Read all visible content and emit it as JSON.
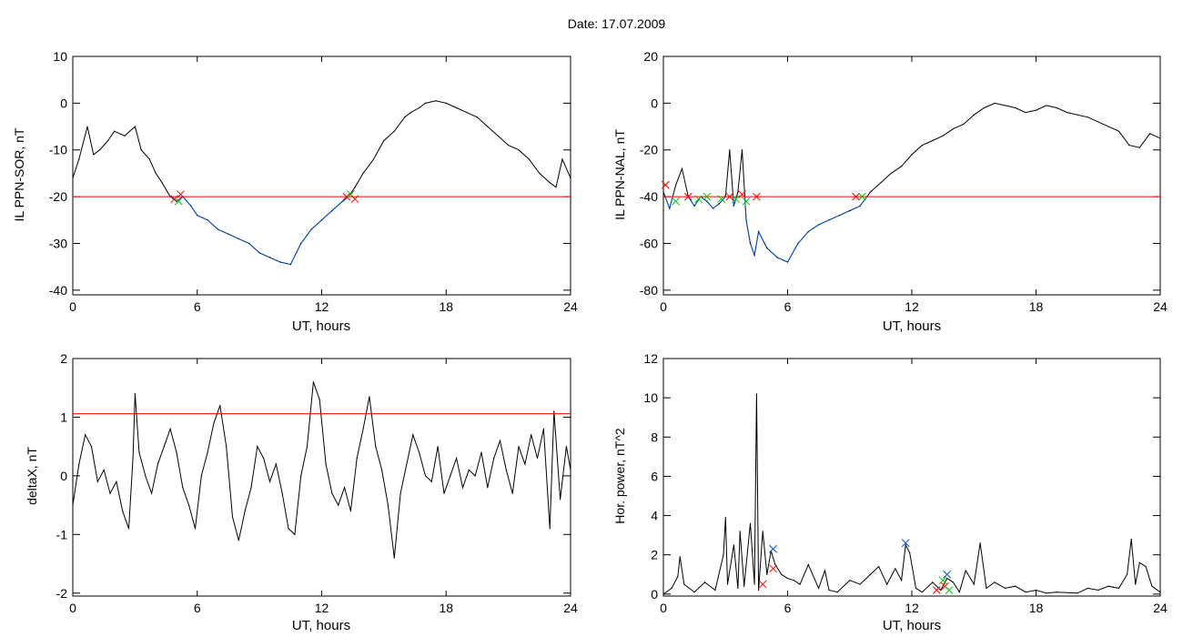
{
  "header": {
    "title": "Date:  17.07.2009"
  },
  "colors": {
    "trace": "#000000",
    "threshold": "#ff0000",
    "below": "#0050c8",
    "marker_red": "#ff0000",
    "marker_green": "#00cc00",
    "marker_blue": "#0050c8"
  },
  "chart_data": [
    {
      "type": "line",
      "title": "",
      "xlabel": "UT, hours",
      "ylabel": "IL PPN-SOR, nT",
      "xlim": [
        0,
        24
      ],
      "ylim": [
        -41,
        10
      ],
      "xticks": [
        "0",
        "6",
        "12",
        "18",
        "24"
      ],
      "yticks": [
        "10",
        "0",
        "-10",
        "-20",
        "-30",
        "-40"
      ],
      "ytick_values": [
        10,
        0,
        -10,
        -20,
        -30,
        -40
      ],
      "threshold": -20,
      "series": [
        {
          "x": [
            0,
            0.3,
            0.7,
            1.0,
            1.3,
            1.7,
            2.0,
            2.5,
            3.0,
            3.3,
            3.7,
            4.0,
            4.3,
            4.7,
            5.0,
            5.3,
            5.7,
            6.0,
            6.5,
            7.0,
            7.5,
            8.0,
            8.5,
            9.0,
            9.5,
            10.0,
            10.5,
            11.0,
            11.5,
            12.0,
            12.5,
            13.0,
            13.3,
            13.6,
            14.0,
            14.5,
            15.0,
            15.5,
            16.0,
            16.3,
            16.7,
            17.0,
            17.5,
            18.0,
            18.5,
            19.0,
            19.5,
            20.0,
            20.5,
            21.0,
            21.5,
            22.0,
            22.5,
            23.0,
            23.3,
            23.6,
            24.0
          ],
          "y": [
            -16,
            -12,
            -5,
            -11,
            -10,
            -8,
            -6,
            -7,
            -5,
            -10,
            -12,
            -15,
            -17,
            -20,
            -21,
            -20,
            -22,
            -24,
            -25,
            -27,
            -28,
            -29,
            -30,
            -32,
            -33,
            -34,
            -34.5,
            -30,
            -27,
            -25,
            -23,
            -21,
            -20,
            -18,
            -15,
            -12,
            -8,
            -6,
            -3,
            -2,
            -1,
            0,
            0.5,
            0,
            -1,
            -2,
            -3,
            -5,
            -7,
            -9,
            -10,
            -12,
            -15,
            -17,
            -18,
            -12,
            -16
          ]
        }
      ],
      "markers": [
        {
          "x": 4.9,
          "y": -20.5,
          "color": "red"
        },
        {
          "x": 5.2,
          "y": -19.5,
          "color": "red"
        },
        {
          "x": 5.1,
          "y": -21,
          "color": "green"
        },
        {
          "x": 13.2,
          "y": -20,
          "color": "red"
        },
        {
          "x": 13.4,
          "y": -19.5,
          "color": "green"
        },
        {
          "x": 13.6,
          "y": -20.5,
          "color": "red"
        }
      ]
    },
    {
      "type": "line",
      "title": "",
      "xlabel": "UT, hours",
      "ylabel": "IL PPN-NAL, nT",
      "xlim": [
        0,
        24
      ],
      "ylim": [
        -82,
        20
      ],
      "xticks": [
        "0",
        "6",
        "12",
        "18",
        "24"
      ],
      "yticks": [
        "20",
        "0",
        "-20",
        "-40",
        "-60",
        "-80"
      ],
      "ytick_values": [
        20,
        0,
        -20,
        -40,
        -60,
        -80
      ],
      "threshold": -40,
      "series": [
        {
          "x": [
            0,
            0.3,
            0.6,
            0.9,
            1.2,
            1.5,
            1.8,
            2.1,
            2.4,
            2.7,
            3.0,
            3.2,
            3.4,
            3.6,
            3.8,
            4.0,
            4.2,
            4.4,
            4.6,
            5.0,
            5.5,
            6.0,
            6.5,
            7.0,
            7.5,
            8.0,
            8.5,
            9.0,
            9.5,
            10.0,
            10.5,
            11.0,
            11.5,
            12.0,
            12.5,
            13.0,
            13.5,
            14.0,
            14.5,
            15.0,
            15.5,
            16.0,
            16.5,
            17.0,
            17.5,
            18.0,
            18.5,
            19.0,
            19.5,
            20.0,
            20.5,
            21.0,
            21.5,
            22.0,
            22.5,
            23.0,
            23.5,
            24.0
          ],
          "y": [
            -38,
            -45,
            -35,
            -28,
            -40,
            -44,
            -40,
            -42,
            -45,
            -43,
            -40,
            -20,
            -44,
            -38,
            -20,
            -50,
            -60,
            -65,
            -55,
            -62,
            -66,
            -68,
            -60,
            -55,
            -52,
            -50,
            -48,
            -46,
            -44,
            -38,
            -34,
            -30,
            -27,
            -22,
            -18,
            -16,
            -14,
            -11,
            -9,
            -5,
            -2,
            0,
            -1,
            -2,
            -4,
            -3,
            -1,
            -2,
            -4,
            -5,
            -6,
            -8,
            -10,
            -12,
            -18,
            -19,
            -13,
            -15
          ]
        }
      ],
      "markers": [
        {
          "x": 0.1,
          "y": -35,
          "color": "red"
        },
        {
          "x": 0.6,
          "y": -42,
          "color": "green"
        },
        {
          "x": 1.2,
          "y": -40,
          "color": "red"
        },
        {
          "x": 1.7,
          "y": -41,
          "color": "green"
        },
        {
          "x": 2.1,
          "y": -40,
          "color": "green"
        },
        {
          "x": 2.8,
          "y": -41,
          "color": "green"
        },
        {
          "x": 3.2,
          "y": -40,
          "color": "red"
        },
        {
          "x": 3.5,
          "y": -41,
          "color": "green"
        },
        {
          "x": 3.8,
          "y": -39,
          "color": "red"
        },
        {
          "x": 4.0,
          "y": -42,
          "color": "green"
        },
        {
          "x": 4.5,
          "y": -40,
          "color": "red"
        },
        {
          "x": 9.3,
          "y": -40,
          "color": "red"
        },
        {
          "x": 9.6,
          "y": -40,
          "color": "green"
        }
      ]
    },
    {
      "type": "line",
      "title": "",
      "xlabel": "UT, hours",
      "ylabel": "deltaX, nT",
      "xlim": [
        0,
        24
      ],
      "ylim": [
        -2.05,
        2.0
      ],
      "xticks": [
        "0",
        "6",
        "12",
        "18",
        "24"
      ],
      "yticks": [
        "2",
        "1",
        "0",
        "-1",
        "-2"
      ],
      "ytick_values": [
        2,
        1,
        0,
        -1,
        -2
      ],
      "threshold": 1.06,
      "series": [
        {
          "x": [
            0,
            0.3,
            0.6,
            0.9,
            1.2,
            1.5,
            1.8,
            2.1,
            2.4,
            2.7,
            2.9,
            3.0,
            3.2,
            3.5,
            3.8,
            4.1,
            4.4,
            4.7,
            5.0,
            5.3,
            5.6,
            5.9,
            6.2,
            6.5,
            6.8,
            7.1,
            7.4,
            7.7,
            8.0,
            8.3,
            8.6,
            8.9,
            9.2,
            9.5,
            9.8,
            10.1,
            10.4,
            10.7,
            11.0,
            11.3,
            11.6,
            11.9,
            12.2,
            12.5,
            12.8,
            13.1,
            13.4,
            13.7,
            14.0,
            14.3,
            14.6,
            14.9,
            15.2,
            15.5,
            15.8,
            16.1,
            16.4,
            16.7,
            17.0,
            17.3,
            17.6,
            17.9,
            18.2,
            18.5,
            18.8,
            19.1,
            19.4,
            19.7,
            20.0,
            20.3,
            20.6,
            20.9,
            21.2,
            21.5,
            21.8,
            22.1,
            22.4,
            22.7,
            23.0,
            23.2,
            23.5,
            23.8,
            24.0
          ],
          "y": [
            -0.5,
            0.2,
            0.7,
            0.5,
            -0.1,
            0.1,
            -0.3,
            -0.1,
            -0.6,
            -0.9,
            0.3,
            1.4,
            0.4,
            0.0,
            -0.3,
            0.2,
            0.5,
            0.8,
            0.4,
            -0.2,
            -0.5,
            -0.9,
            0.0,
            0.4,
            0.9,
            1.2,
            0.5,
            -0.7,
            -1.1,
            -0.6,
            -0.2,
            0.5,
            0.3,
            -0.1,
            0.2,
            -0.3,
            -0.9,
            -1.0,
            0.0,
            0.5,
            1.6,
            1.3,
            0.2,
            -0.3,
            -0.5,
            -0.2,
            -0.6,
            0.3,
            0.8,
            1.35,
            0.5,
            0.1,
            -0.5,
            -1.4,
            -0.3,
            0.2,
            0.7,
            0.4,
            0.0,
            -0.1,
            0.5,
            -0.3,
            0.0,
            0.3,
            -0.2,
            0.1,
            0.0,
            0.4,
            -0.2,
            0.3,
            0.6,
            0.1,
            -0.3,
            0.5,
            0.2,
            0.7,
            0.3,
            0.8,
            -0.9,
            1.1,
            -0.4,
            0.5,
            0.1
          ]
        }
      ]
    },
    {
      "type": "line",
      "title": "",
      "xlabel": "UT, hours",
      "ylabel": "Hor. power, nT^2",
      "xlim": [
        0,
        24
      ],
      "ylim": [
        -0.1,
        12
      ],
      "xticks": [
        "0",
        "6",
        "12",
        "18",
        "24"
      ],
      "yticks": [
        "12",
        "10",
        "8",
        "6",
        "4",
        "2",
        "0"
      ],
      "ytick_values": [
        12,
        10,
        8,
        6,
        4,
        2,
        0
      ],
      "series": [
        {
          "x": [
            0,
            0.4,
            0.7,
            0.8,
            1.0,
            1.5,
            2.0,
            2.5,
            2.9,
            3.0,
            3.1,
            3.4,
            3.6,
            3.7,
            3.9,
            4.2,
            4.4,
            4.5,
            4.6,
            4.8,
            5.0,
            5.2,
            5.4,
            5.7,
            6.0,
            6.3,
            6.6,
            7.0,
            7.5,
            7.8,
            8.0,
            8.4,
            9.0,
            9.5,
            10.0,
            10.4,
            10.8,
            11.2,
            11.5,
            11.7,
            11.9,
            12.2,
            12.5,
            13.0,
            13.4,
            13.7,
            14.0,
            14.3,
            14.6,
            15.0,
            15.3,
            15.6,
            16.0,
            16.5,
            17.0,
            17.5,
            18.0,
            18.5,
            19.0,
            20.0,
            20.5,
            21.0,
            21.5,
            22.0,
            22.4,
            22.6,
            22.8,
            23.0,
            23.3,
            23.6,
            24.0
          ],
          "y": [
            0,
            0.3,
            0.9,
            1.9,
            0.5,
            0.1,
            0.6,
            0.2,
            2.0,
            3.9,
            0.5,
            2.5,
            0.3,
            3.2,
            0.4,
            3.6,
            0.5,
            10.2,
            0.2,
            3.2,
            1.0,
            2.2,
            1.5,
            1.0,
            0.8,
            0.7,
            0.5,
            1.5,
            0.3,
            1.2,
            0.2,
            0.1,
            0.7,
            0.5,
            1.0,
            1.4,
            0.5,
            1.3,
            0.7,
            2.5,
            2.1,
            0.3,
            0.1,
            0.6,
            0.2,
            0.8,
            0.6,
            0.1,
            1.2,
            0.5,
            2.6,
            0.3,
            0.6,
            0.3,
            0.4,
            0.1,
            0.2,
            0.05,
            0.1,
            0.05,
            0.3,
            0.2,
            0.4,
            0.3,
            1.0,
            2.8,
            0.5,
            1.6,
            1.4,
            0.4,
            0.1
          ]
        }
      ],
      "markers": [
        {
          "x": 4.8,
          "y": 0.5,
          "color": "red"
        },
        {
          "x": 5.3,
          "y": 2.3,
          "color": "blue"
        },
        {
          "x": 5.3,
          "y": 1.3,
          "color": "red"
        },
        {
          "x": 11.7,
          "y": 2.6,
          "color": "blue"
        },
        {
          "x": 13.2,
          "y": 0.2,
          "color": "red"
        },
        {
          "x": 13.5,
          "y": 0.7,
          "color": "green"
        },
        {
          "x": 13.7,
          "y": 1.0,
          "color": "blue"
        },
        {
          "x": 13.6,
          "y": 0.4,
          "color": "red"
        },
        {
          "x": 13.8,
          "y": 0.2,
          "color": "green"
        }
      ]
    }
  ]
}
